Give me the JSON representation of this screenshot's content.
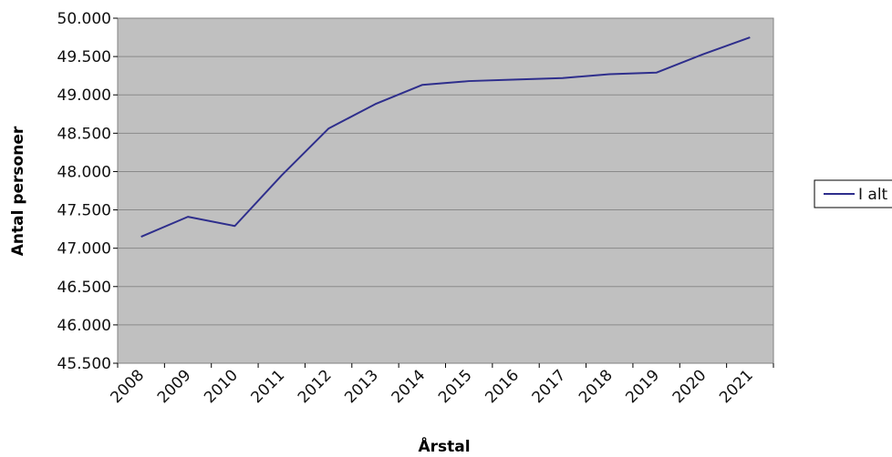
{
  "chart_data": {
    "type": "line",
    "x": [
      "2008",
      "2009",
      "2010",
      "2011",
      "2012",
      "2013",
      "2014",
      "2015",
      "2016",
      "2017",
      "2018",
      "2019",
      "2020",
      "2021"
    ],
    "series": [
      {
        "name": "I alt",
        "color": "#2e2e8c",
        "values": [
          47150,
          47410,
          47290,
          47950,
          48560,
          48880,
          49130,
          49180,
          49200,
          49220,
          49270,
          49290,
          49530,
          49750
        ]
      }
    ],
    "ylabel": "Antal personer",
    "xlabel": "Årstal",
    "ylim": [
      45500,
      50000
    ],
    "yticks": [
      {
        "value": 45500,
        "label": "45.500"
      },
      {
        "value": 46000,
        "label": "46.000"
      },
      {
        "value": 46500,
        "label": "46.500"
      },
      {
        "value": 47000,
        "label": "47.000"
      },
      {
        "value": 47500,
        "label": "47.500"
      },
      {
        "value": 48000,
        "label": "48.000"
      },
      {
        "value": 48500,
        "label": "48.500"
      },
      {
        "value": 49000,
        "label": "49.000"
      },
      {
        "value": 49500,
        "label": "49.500"
      },
      {
        "value": 50000,
        "label": "50.000"
      }
    ],
    "grid": true,
    "plot_background": "#c0c0c0",
    "legend_position": "right"
  }
}
